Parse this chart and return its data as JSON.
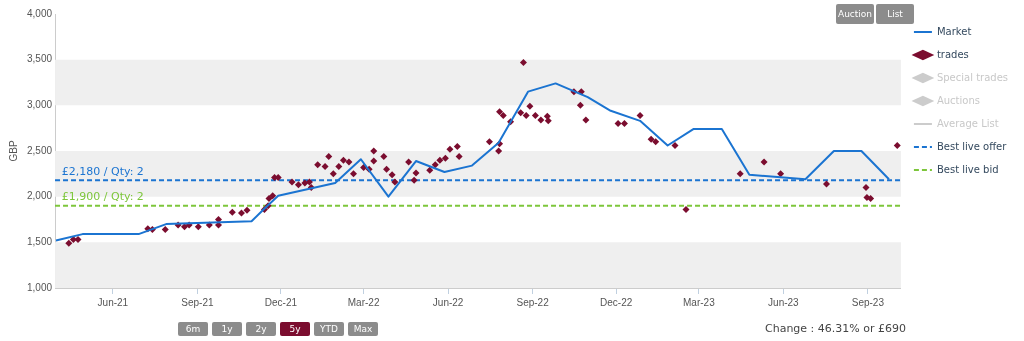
{
  "chart_data": {
    "type": "line",
    "ylabel": "GBP",
    "xlim": [
      "2021-03-30",
      "2023-10-07"
    ],
    "xticks": [
      {
        "value": "2021-06-01",
        "label": "Jun-21"
      },
      {
        "value": "2021-09-01",
        "label": "Sep-21"
      },
      {
        "value": "2021-12-01",
        "label": "Dec-21"
      },
      {
        "value": "2022-03-01",
        "label": "Mar-22"
      },
      {
        "value": "2022-06-01",
        "label": "Jun-22"
      },
      {
        "value": "2022-09-01",
        "label": "Sep-22"
      },
      {
        "value": "2022-12-01",
        "label": "Dec-22"
      },
      {
        "value": "2023-03-01",
        "label": "Mar-23"
      },
      {
        "value": "2023-06-01",
        "label": "Jun-23"
      },
      {
        "value": "2023-09-01",
        "label": "Sep-23"
      }
    ],
    "ylim": [
      1000,
      4000
    ],
    "yticks": [
      {
        "value": 1000,
        "label": "1,000"
      },
      {
        "value": 1500,
        "label": "1,500"
      },
      {
        "value": 2000,
        "label": "2,000"
      },
      {
        "value": 2500,
        "label": "2,500"
      },
      {
        "value": 3000,
        "label": "3,000"
      },
      {
        "value": 3500,
        "label": "3,500"
      },
      {
        "value": 4000,
        "label": "4,000"
      }
    ],
    "grid": false,
    "legend": "right",
    "bands": [
      {
        "axis": "y",
        "from": 1000,
        "to": 1500,
        "color": "#efefef"
      },
      {
        "axis": "y",
        "from": 2000,
        "to": 2500,
        "color": "#efefef"
      },
      {
        "axis": "y",
        "from": 3000,
        "to": 3500,
        "color": "#efefef"
      }
    ],
    "series": [
      {
        "name": "Market",
        "color": "#1b74d1",
        "marker": "none",
        "x": [
          "2021-03-31",
          "2021-04-29",
          "2021-06-29",
          "2021-07-29",
          "2021-10-30",
          "2021-11-12",
          "2021-11-28",
          "2022-01-29",
          "2022-02-26",
          "2022-03-28",
          "2022-04-27",
          "2022-05-28",
          "2022-06-27",
          "2022-07-26",
          "2022-08-27",
          "2022-09-26",
          "2022-10-31",
          "2022-11-25",
          "2022-12-27",
          "2023-01-26",
          "2023-02-23",
          "2023-03-26",
          "2023-04-25",
          "2023-06-25",
          "2023-07-26",
          "2023-08-25",
          "2023-09-24"
        ],
        "values": [
          1520,
          1590,
          1590,
          1700,
          1730,
          1860,
          2010,
          2150,
          2410,
          2000,
          2390,
          2270,
          2340,
          2590,
          3150,
          3240,
          3090,
          2940,
          2830,
          2560,
          2740,
          2740,
          2240,
          2190,
          2500,
          2500,
          2190
        ]
      },
      {
        "name": "trades",
        "type": "scatter",
        "color": "#7b0d2f",
        "marker": "diamond",
        "x": [
          "2021-04-14",
          "2021-04-19",
          "2021-04-24",
          "2021-07-09",
          "2021-07-14",
          "2021-07-28",
          "2021-08-11",
          "2021-08-18",
          "2021-08-23",
          "2021-09-02",
          "2021-09-14",
          "2021-09-24",
          "2021-09-24",
          "2021-10-09",
          "2021-10-19",
          "2021-10-25",
          "2021-11-13",
          "2021-11-17",
          "2021-11-18",
          "2021-11-22",
          "2021-11-24",
          "2021-11-28",
          "2021-12-13",
          "2021-12-20",
          "2021-12-27",
          "2022-01-01",
          "2022-01-03",
          "2022-01-10",
          "2022-01-18",
          "2022-01-22",
          "2022-01-27",
          "2022-02-02",
          "2022-02-07",
          "2022-02-13",
          "2022-02-18",
          "2022-03-01",
          "2022-03-07",
          "2022-03-12",
          "2022-03-12",
          "2022-03-23",
          "2022-03-26",
          "2022-04-01",
          "2022-04-04",
          "2022-04-19",
          "2022-04-25",
          "2022-04-27",
          "2022-05-12",
          "2022-05-18",
          "2022-05-23",
          "2022-05-29",
          "2022-06-03",
          "2022-06-11",
          "2022-06-13",
          "2022-07-16",
          "2022-07-26",
          "2022-07-27",
          "2022-07-27",
          "2022-07-31",
          "2022-08-08",
          "2022-08-19",
          "2022-08-22",
          "2022-08-25",
          "2022-08-29",
          "2022-09-04",
          "2022-09-10",
          "2022-09-17",
          "2022-09-18",
          "2022-10-16",
          "2022-10-24",
          "2022-10-23",
          "2022-10-29",
          "2022-12-03",
          "2022-12-10",
          "2022-12-27",
          "2023-01-08",
          "2023-01-13",
          "2023-02-03",
          "2023-02-15",
          "2023-04-15",
          "2023-05-11",
          "2023-05-29",
          "2023-07-18",
          "2023-08-30",
          "2023-08-31",
          "2023-09-04",
          "2023-10-03"
        ],
        "values": [
          1490,
          1530,
          1530,
          1650,
          1640,
          1640,
          1690,
          1670,
          1690,
          1670,
          1690,
          1690,
          1750,
          1830,
          1820,
          1850,
          1860,
          1900,
          1980,
          2010,
          2210,
          2210,
          2160,
          2130,
          2150,
          2160,
          2100,
          2350,
          2330,
          2440,
          2250,
          2330,
          2400,
          2380,
          2250,
          2320,
          2300,
          2500,
          2390,
          2440,
          2300,
          2240,
          2160,
          2380,
          2180,
          2260,
          2290,
          2350,
          2400,
          2420,
          2520,
          2550,
          2440,
          2600,
          2500,
          2580,
          2930,
          2890,
          2820,
          2920,
          3470,
          2890,
          2990,
          2890,
          2840,
          2880,
          2830,
          3150,
          3150,
          3000,
          2840,
          2800,
          2800,
          2890,
          2630,
          2600,
          2560,
          1860,
          2250,
          2380,
          2250,
          2140,
          2100,
          1990,
          1980,
          2560
        ]
      },
      {
        "name": "Special trades",
        "type": "scatter",
        "color": "#cccccc",
        "marker": "diamond"
      },
      {
        "name": "Auctions",
        "type": "scatter",
        "color": "#cccccc",
        "marker": "diamond"
      },
      {
        "name": "Average List",
        "type": "line",
        "color": "#cccccc",
        "marker": "none"
      },
      {
        "name": "Best live offer",
        "type": "line",
        "color": "#1b74d1",
        "marker": "none",
        "line_style": "dashed",
        "x": [
          "2021-03-30",
          "2023-10-07"
        ],
        "values": [
          2180,
          2180
        ]
      },
      {
        "name": "Best live bid",
        "type": "line",
        "color": "#7dc63b",
        "marker": "none",
        "line_style": "dashed",
        "x": [
          "2021-03-30",
          "2023-10-07"
        ],
        "values": [
          1900,
          1900
        ]
      }
    ],
    "annotations": [
      {
        "text": "£2,180 / Qty: 2",
        "x": "2021-04-02",
        "y": 2180
      },
      {
        "text": "£1,900 / Qty: 2",
        "x": "2021-04-02",
        "y": 1900
      },
      "Auction",
      "List",
      "6m",
      "1y",
      "2y",
      "5y",
      "YTD",
      "Max",
      "Change : 46.31% or £690"
    ]
  }
}
